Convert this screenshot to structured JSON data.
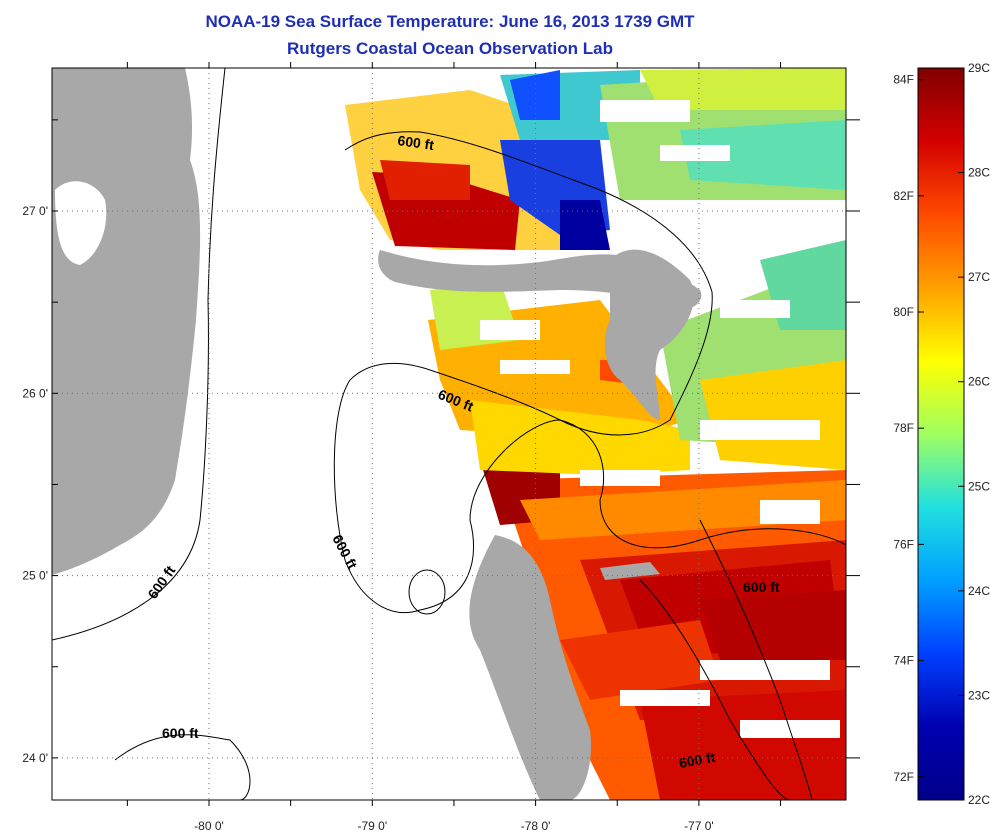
{
  "title": "NOAA-19 Sea Surface Temperature:  June 16, 2013 1739 GMT",
  "subtitle": "Rutgers Coastal Ocean Observation Lab",
  "map": {
    "lon_ticks": [
      {
        "value": -80,
        "label": "-80 0'"
      },
      {
        "value": -79,
        "label": "-79 0'"
      },
      {
        "value": -78,
        "label": "-78 0'"
      },
      {
        "value": -77,
        "label": "-77 0'"
      }
    ],
    "lat_ticks": [
      {
        "value": 27,
        "label": "27 0'"
      },
      {
        "value": 26,
        "label": "26 0'"
      },
      {
        "value": 25,
        "label": "25 0'"
      },
      {
        "value": 24,
        "label": "24 0'"
      }
    ],
    "contour_label": "600 ft",
    "grid": true,
    "colors": {
      "land": "#a8a8a8",
      "frame": "#000000"
    }
  },
  "colorbar": {
    "celsius_labels": [
      "29C",
      "28C",
      "27C",
      "26C",
      "25C",
      "24C",
      "23C",
      "22C"
    ],
    "fahrenheit_labels": [
      "84F",
      "82F",
      "80F",
      "78F",
      "76F",
      "74F",
      "72F"
    ],
    "range_c": [
      22,
      29
    ],
    "colors": [
      "#800000",
      "#d40000",
      "#ff4a00",
      "#ffa000",
      "#ffff00",
      "#a0ff60",
      "#20e0e0",
      "#00a0ff",
      "#0040ff",
      "#0000b0",
      "#00008a"
    ]
  }
}
